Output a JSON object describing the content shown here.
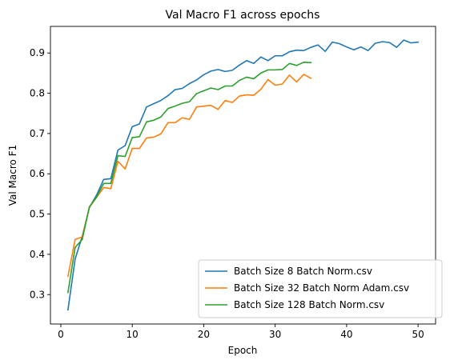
{
  "chart_data": {
    "type": "line",
    "title": "Val Macro F1 across epochs",
    "xlabel": "Epoch",
    "ylabel": "Val Macro F1",
    "xlim": [
      -1.45,
      52.45
    ],
    "ylim": [
      0.227,
      0.966
    ],
    "xticks": [
      0,
      10,
      20,
      30,
      40,
      50
    ],
    "yticks": [
      0.3,
      0.4,
      0.5,
      0.6,
      0.7,
      0.8,
      0.9
    ],
    "grid": false,
    "legend_position": "lower-right",
    "series": [
      {
        "name": "Batch Size 8 Batch Norm.csv",
        "color": "#1f77b4",
        "x": [
          1,
          2,
          3,
          4,
          5,
          6,
          7,
          8,
          9,
          10,
          11,
          12,
          13,
          14,
          15,
          16,
          17,
          18,
          19,
          20,
          21,
          22,
          23,
          24,
          25,
          26,
          27,
          28,
          29,
          30,
          31,
          32,
          33,
          34,
          35,
          36,
          37,
          38,
          39,
          40,
          41,
          42,
          43,
          44,
          45,
          46,
          47,
          48,
          49,
          50
        ],
        "y": [
          0.262,
          0.388,
          0.445,
          0.516,
          0.547,
          0.586,
          0.588,
          0.659,
          0.67,
          0.717,
          0.724,
          0.766,
          0.774,
          0.782,
          0.794,
          0.809,
          0.812,
          0.824,
          0.833,
          0.846,
          0.855,
          0.859,
          0.854,
          0.857,
          0.87,
          0.881,
          0.874,
          0.89,
          0.881,
          0.893,
          0.893,
          0.903,
          0.907,
          0.906,
          0.914,
          0.92,
          0.904,
          0.927,
          0.923,
          0.915,
          0.908,
          0.915,
          0.906,
          0.924,
          0.928,
          0.926,
          0.914,
          0.932,
          0.925,
          0.927
        ]
      },
      {
        "name": "Batch Size 32 Batch Norm Adam.csv",
        "color": "#ff7f0e",
        "x": [
          1,
          2,
          3,
          4,
          5,
          6,
          7,
          8,
          9,
          10,
          11,
          12,
          13,
          14,
          15,
          16,
          17,
          18,
          19,
          20,
          21,
          22,
          23,
          24,
          25,
          26,
          27,
          28,
          29,
          30,
          31,
          32,
          33,
          34,
          35
        ],
        "y": [
          0.345,
          0.437,
          0.443,
          0.517,
          0.541,
          0.566,
          0.563,
          0.631,
          0.612,
          0.663,
          0.663,
          0.689,
          0.691,
          0.699,
          0.727,
          0.727,
          0.739,
          0.735,
          0.766,
          0.768,
          0.77,
          0.76,
          0.782,
          0.777,
          0.793,
          0.796,
          0.795,
          0.81,
          0.834,
          0.82,
          0.823,
          0.845,
          0.828,
          0.847,
          0.837
        ]
      },
      {
        "name": "Batch Size 128 Batch Norm.csv",
        "color": "#2ca02c",
        "x": [
          1,
          2,
          3,
          4,
          5,
          6,
          7,
          8,
          9,
          10,
          11,
          12,
          13,
          14,
          15,
          16,
          17,
          18,
          19,
          20,
          21,
          22,
          23,
          24,
          25,
          26,
          27,
          28,
          29,
          30,
          31,
          32,
          33,
          34,
          35
        ],
        "y": [
          0.305,
          0.417,
          0.437,
          0.518,
          0.542,
          0.576,
          0.576,
          0.645,
          0.643,
          0.69,
          0.692,
          0.729,
          0.733,
          0.741,
          0.762,
          0.768,
          0.775,
          0.779,
          0.799,
          0.806,
          0.813,
          0.809,
          0.818,
          0.818,
          0.832,
          0.84,
          0.836,
          0.85,
          0.858,
          0.858,
          0.859,
          0.874,
          0.869,
          0.877,
          0.876
        ]
      }
    ]
  }
}
